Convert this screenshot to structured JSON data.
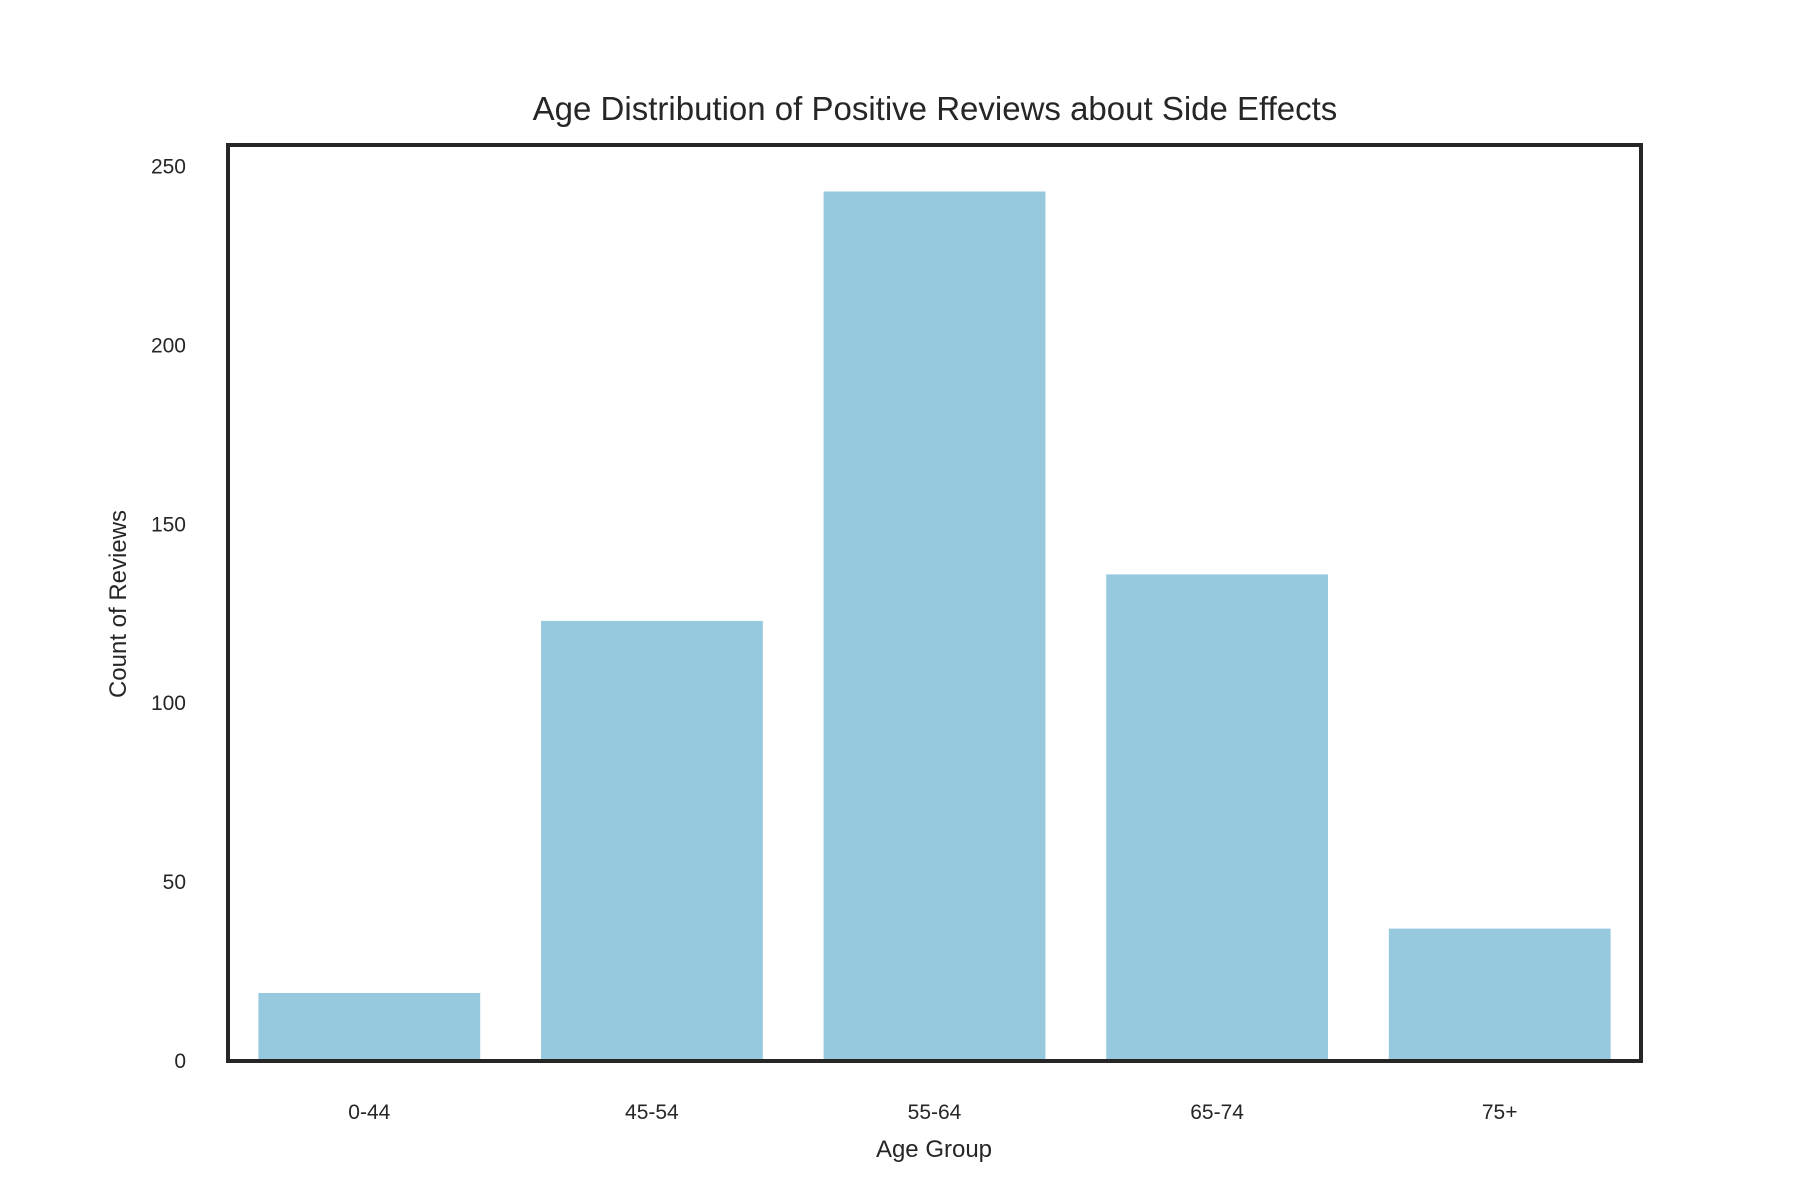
{
  "chart_data": {
    "type": "bar",
    "title": "Age Distribution of Positive Reviews about Side Effects",
    "xlabel": "Age Group",
    "ylabel": "Count of Reviews",
    "categories": [
      "0-44",
      "45-54",
      "55-64",
      "65-74",
      "75+"
    ],
    "values": [
      19,
      123,
      243,
      136,
      37
    ],
    "ylim": [
      0,
      256
    ],
    "yticks": [
      0,
      50,
      100,
      150,
      200,
      250
    ],
    "grid": false,
    "legend": "none",
    "bar_color": "#96c8de",
    "frame_color": "#262626"
  }
}
